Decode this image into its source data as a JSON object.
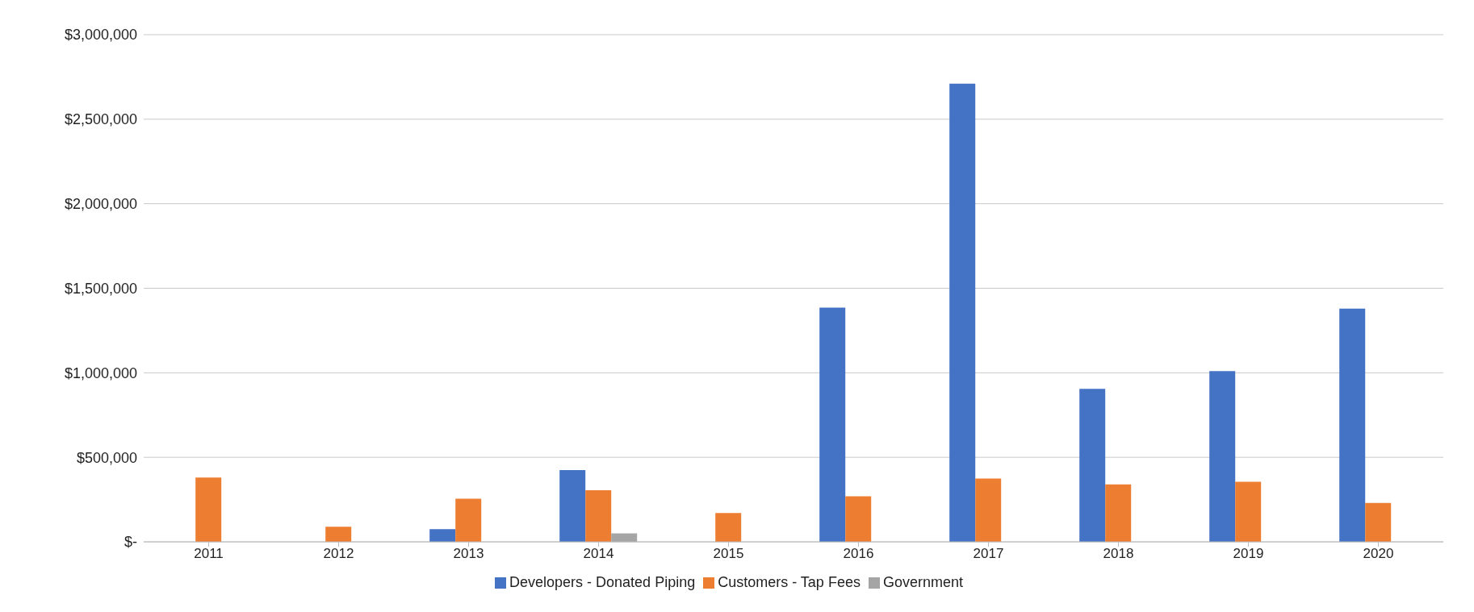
{
  "chart_data": {
    "type": "bar",
    "categories": [
      "2011",
      "2012",
      "2013",
      "2014",
      "2015",
      "2016",
      "2017",
      "2018",
      "2019",
      "2020"
    ],
    "series": [
      {
        "name": "Developers - Donated Piping",
        "color": "#4472c4",
        "values": [
          null,
          null,
          75000,
          425000,
          null,
          1385000,
          2710000,
          905000,
          1010000,
          1380000
        ]
      },
      {
        "name": "Customers - Tap Fees",
        "color": "#ed7d31",
        "values": [
          380000,
          90000,
          255000,
          305000,
          170000,
          270000,
          375000,
          340000,
          355000,
          230000
        ]
      },
      {
        "name": "Government",
        "color": "#a5a5a5",
        "values": [
          null,
          null,
          null,
          50000,
          null,
          null,
          null,
          null,
          null,
          null
        ]
      }
    ],
    "ylim": [
      0,
      3000000
    ],
    "yticks": [
      {
        "value": 0,
        "label": "$-"
      },
      {
        "value": 500000,
        "label": "$500,000"
      },
      {
        "value": 1000000,
        "label": "$1,000,000"
      },
      {
        "value": 1500000,
        "label": "$1,500,000"
      },
      {
        "value": 2000000,
        "label": "$2,000,000"
      },
      {
        "value": 2500000,
        "label": "$2,500,000"
      },
      {
        "value": 3000000,
        "label": "$3,000,000"
      }
    ],
    "grid": "y",
    "legend": "bottom"
  }
}
